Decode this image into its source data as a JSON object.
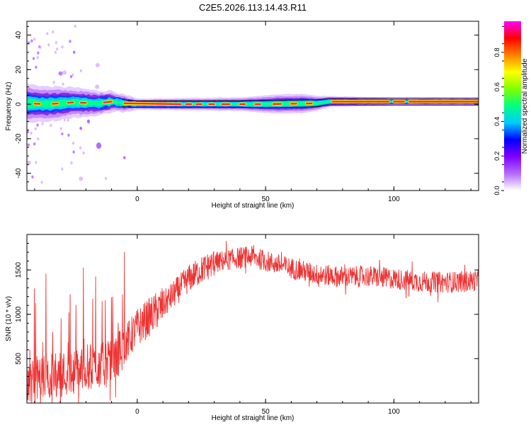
{
  "title": "C2E5.2026.113.14.43.R11",
  "colors": {
    "snr_line": "#ee3333",
    "colormap": [
      "#ffffff",
      "#b36bff",
      "#8000ff",
      "#0000ff",
      "#00ccff",
      "#00ff80",
      "#80ff00",
      "#ffff00",
      "#ff8000",
      "#ff0000",
      "#ff00ff"
    ]
  },
  "chart_data": [
    {
      "type": "heatmap",
      "xlabel": "Height of straight line (km)",
      "ylabel": "Frequency (Hz)",
      "xlim": [
        -43,
        133
      ],
      "ylim": [
        -50,
        48
      ],
      "x_ticks": [
        0,
        50,
        100
      ],
      "y_ticks": [
        -40,
        -20,
        0,
        20,
        40
      ],
      "grid": false,
      "colorbar": {
        "label": "Normalized spectral amplitude",
        "range": [
          0.0,
          0.98
        ],
        "ticks": [
          0.0,
          0.2,
          0.4,
          0.6,
          0.8
        ]
      },
      "peak_frequency_track": {
        "x": [
          -43,
          -35,
          -25,
          -15,
          -10,
          -5,
          0,
          25,
          50,
          70,
          75,
          100,
          133
        ],
        "y": [
          0.5,
          0,
          1,
          0.5,
          1.5,
          0.5,
          0,
          0,
          0,
          0.5,
          1.5,
          1.5,
          1.5
        ]
      },
      "band_half_width_hz": {
        "x": [
          -43,
          -30,
          -20,
          -10,
          0,
          40,
          55,
          65,
          75,
          100,
          133
        ],
        "y": [
          7,
          6,
          5,
          4,
          2,
          2.5,
          3.5,
          3.5,
          2,
          1.5,
          1.5
        ]
      }
    },
    {
      "type": "line",
      "xlabel": "Height of straight line (km)",
      "ylabel": "SNR (10 * v/v)",
      "xlim": [
        -43,
        133
      ],
      "ylim": [
        0,
        1900
      ],
      "x_ticks": [
        0,
        50,
        100
      ],
      "y_ticks": [
        500,
        1000,
        1500
      ],
      "grid": false,
      "series": [
        {
          "x": [
            -43,
            -35,
            -25,
            -20,
            -15,
            -10,
            -5,
            0,
            10,
            20,
            25,
            30,
            40,
            45,
            50,
            60,
            70,
            80,
            90,
            100,
            110,
            120,
            133
          ],
          "y": [
            250,
            300,
            350,
            400,
            420,
            450,
            650,
            850,
            1100,
            1400,
            1500,
            1580,
            1640,
            1650,
            1600,
            1520,
            1450,
            1420,
            1430,
            1400,
            1370,
            1360,
            1380
          ]
        }
      ]
    }
  ]
}
